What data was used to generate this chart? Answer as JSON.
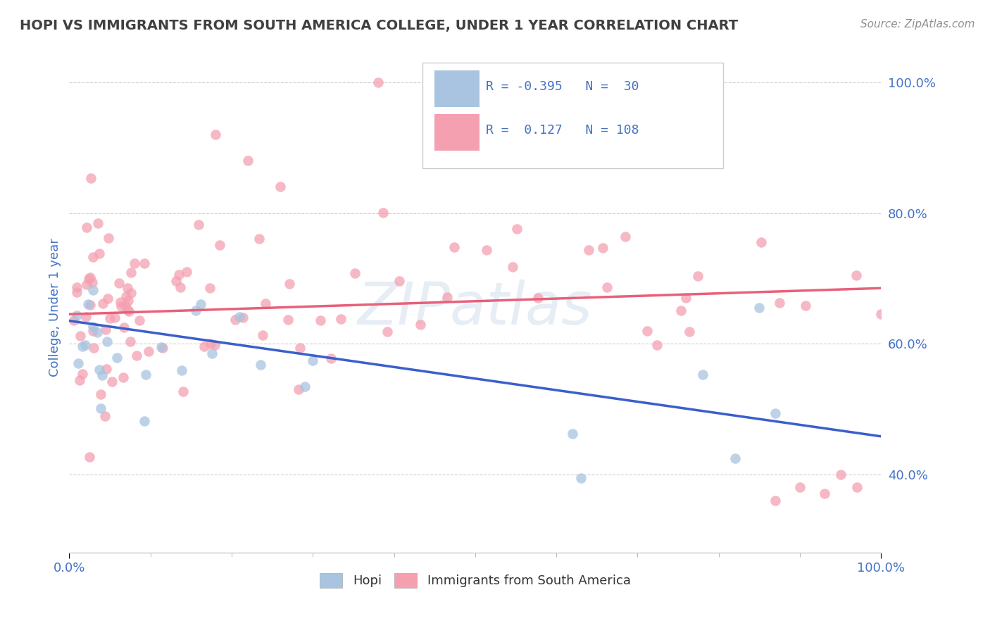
{
  "title": "HOPI VS IMMIGRANTS FROM SOUTH AMERICA COLLEGE, UNDER 1 YEAR CORRELATION CHART",
  "source": "Source: ZipAtlas.com",
  "ylabel": "College, Under 1 year",
  "xlim": [
    0.0,
    1.0
  ],
  "ylim": [
    0.28,
    1.03
  ],
  "x_tick_labels": [
    "0.0%",
    "100.0%"
  ],
  "y_tick_labels": [
    "40.0%",
    "60.0%",
    "80.0%",
    "100.0%"
  ],
  "y_tick_values": [
    0.4,
    0.6,
    0.8,
    1.0
  ],
  "watermark": "ZIPatlas",
  "hopi_color": "#a8c4e0",
  "sa_color": "#f4a0b0",
  "hopi_line_color": "#3a5fcd",
  "sa_line_color": "#e8607a",
  "title_color": "#404040",
  "source_color": "#909090",
  "axis_label_color": "#4472c4",
  "tick_label_color": "#4472c4",
  "grid_color": "#d0d0d0",
  "background_color": "#ffffff",
  "legend_r1_val": "-0.395",
  "legend_n1": "30",
  "legend_r2_val": "0.127",
  "legend_n2": "108",
  "hopi_trend_x0": 0.0,
  "hopi_trend_y0": 0.635,
  "hopi_trend_x1": 1.0,
  "hopi_trend_y1": 0.458,
  "sa_trend_x0": 0.0,
  "sa_trend_y0": 0.645,
  "sa_trend_x1": 1.0,
  "sa_trend_y1": 0.685
}
